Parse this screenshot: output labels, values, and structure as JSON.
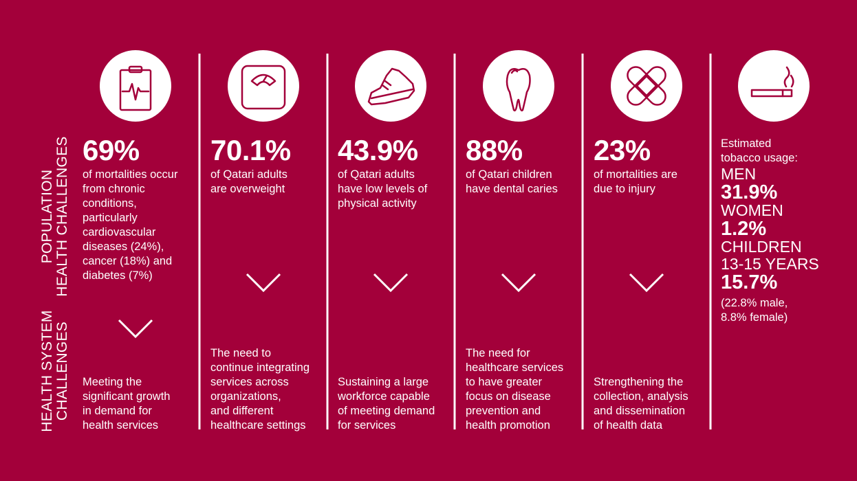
{
  "side_labels": {
    "population": [
      "POPULATION",
      "HEALTH CHALLENGES"
    ],
    "health_system": [
      "HEALTH SYSTEM",
      "CHALLENGES"
    ]
  },
  "columns": [
    {
      "stat": "69%",
      "description": [
        "of mortalities occur",
        "from chronic",
        "conditions,",
        "particularly",
        "cardiovascular",
        "diseases (24%),",
        "cancer (18%) and",
        "diabetes (7%)"
      ],
      "system_challenge": [
        "Meeting the",
        "significant growth",
        "in demand for",
        "health services"
      ]
    },
    {
      "stat": "70.1%",
      "description": [
        "of Qatari adults",
        "are overweight"
      ],
      "system_challenge": [
        "The need to",
        "continue integrating",
        "services across",
        "organizations,",
        "and different",
        "healthcare settings"
      ]
    },
    {
      "stat": "43.9%",
      "description": [
        "of Qatari adults",
        "have low levels of",
        "physical activity"
      ],
      "system_challenge": [
        "Sustaining a large",
        "workforce capable",
        "of meeting demand",
        "for services"
      ]
    },
    {
      "stat": "88%",
      "description": [
        "of Qatari children",
        "have dental caries"
      ],
      "system_challenge": [
        "The need for",
        "healthcare services",
        "to have greater",
        "focus on disease",
        "prevention and",
        "health promotion"
      ]
    },
    {
      "stat": "23%",
      "description": [
        "of mortalities are",
        "due to injury"
      ],
      "system_challenge": [
        "Strengthening the",
        "collection, analysis",
        "and dissemination",
        "of health data"
      ]
    }
  ],
  "tobacco": {
    "intro": [
      "Estimated",
      "tobacco usage:"
    ],
    "groups": [
      {
        "label": [
          "MEN"
        ],
        "value": "31.9%"
      },
      {
        "label": [
          "WOMEN"
        ],
        "value": "1.2%"
      },
      {
        "label": [
          "CHILDREN",
          "13-15 YEARS"
        ],
        "value": "15.7%",
        "note": [
          "(22.8% male,",
          "8.8% female)"
        ]
      }
    ]
  }
}
